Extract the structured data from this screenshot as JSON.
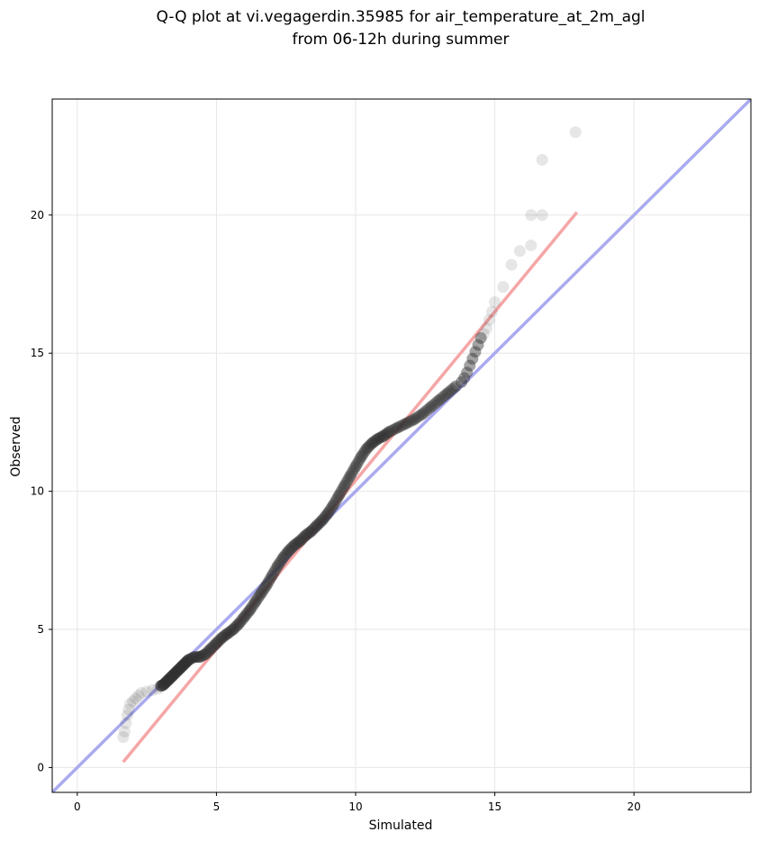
{
  "chart_data": {
    "type": "scatter",
    "title": "Q-Q plot at vi.vegagerdin.35985 for air_temperature_at_2m_agl",
    "subtitle": "from 06-12h during summer",
    "xlabel": "Simulated",
    "ylabel": "Observed",
    "xlim": [
      -0.9,
      24.2
    ],
    "ylim": [
      -0.9,
      24.2
    ],
    "x_ticks": [
      0,
      5,
      10,
      15,
      20
    ],
    "y_ticks": [
      0,
      5,
      10,
      15,
      20
    ],
    "x_tick_labels": [
      "0",
      "5",
      "10",
      "15",
      "20"
    ],
    "y_tick_labels": [
      "0",
      "5",
      "10",
      "15",
      "20"
    ],
    "grid": true,
    "identity_line": {
      "from": [
        -0.9,
        -0.9
      ],
      "to": [
        24.2,
        24.2
      ],
      "color": "#aaaaf0"
    },
    "fit_line": {
      "from": [
        1.65,
        0.2
      ],
      "to": [
        17.95,
        20.1
      ],
      "color": "#f5a6a6"
    },
    "points": {
      "marker_color": "#303030",
      "x": [
        1.65,
        1.7,
        1.75,
        1.8,
        1.85,
        1.9,
        2.0,
        2.1,
        2.2,
        2.3,
        2.5,
        2.7,
        2.9,
        3.0,
        3.1,
        3.2,
        3.3,
        3.4,
        3.5,
        3.6,
        3.7,
        3.8,
        3.9,
        4.0,
        4.2,
        4.4,
        4.6,
        4.8,
        5.0,
        5.2,
        5.4,
        5.6,
        5.8,
        6.0,
        6.2,
        6.4,
        6.6,
        6.8,
        7.0,
        7.2,
        7.4,
        7.6,
        7.8,
        8.0,
        8.2,
        8.4,
        8.6,
        8.8,
        9.0,
        9.2,
        9.4,
        9.6,
        9.8,
        10.0,
        10.2,
        10.4,
        10.6,
        10.8,
        11.0,
        11.2,
        11.5,
        11.8,
        12.1,
        12.4,
        12.7,
        13.0,
        13.3,
        13.6,
        13.8,
        13.9,
        14.0,
        14.1,
        14.2,
        14.3,
        14.4,
        14.5,
        14.6,
        14.7,
        14.8,
        14.9,
        15.0,
        15.3,
        15.6,
        15.9,
        16.3,
        16.7,
        17.9
      ],
      "y": [
        1.1,
        1.3,
        1.6,
        1.9,
        2.1,
        2.3,
        2.4,
        2.5,
        2.6,
        2.7,
        2.75,
        2.8,
        2.85,
        2.95,
        3.0,
        3.1,
        3.2,
        3.3,
        3.4,
        3.5,
        3.6,
        3.7,
        3.8,
        3.9,
        4.0,
        4.0,
        4.1,
        4.3,
        4.5,
        4.7,
        4.85,
        5.0,
        5.2,
        5.45,
        5.7,
        6.0,
        6.3,
        6.6,
        6.95,
        7.3,
        7.6,
        7.85,
        8.05,
        8.2,
        8.4,
        8.55,
        8.75,
        8.95,
        9.2,
        9.5,
        9.85,
        10.2,
        10.55,
        10.9,
        11.25,
        11.55,
        11.75,
        11.9,
        12.0,
        12.15,
        12.3,
        12.45,
        12.6,
        12.8,
        13.05,
        13.3,
        13.55,
        13.8,
        13.95,
        14.1,
        14.3,
        14.55,
        14.8,
        15.05,
        15.3,
        15.55,
        15.7,
        15.9,
        16.2,
        16.5,
        16.85,
        17.4,
        18.2,
        18.7,
        18.9,
        20.0,
        23.0
      ],
      "extra": [
        {
          "x": 16.7,
          "y": 22.0
        },
        {
          "x": 16.3,
          "y": 20.0
        }
      ]
    }
  }
}
